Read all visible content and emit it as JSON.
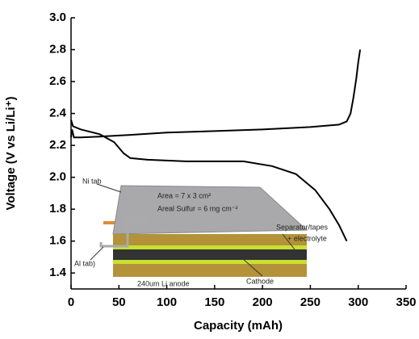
{
  "chart_data": {
    "type": "line",
    "x_label": "Capacity (mAh)",
    "y_label": "Voltage (V vs Li/Li⁺)",
    "xlim": [
      0,
      350
    ],
    "xticks": [
      0,
      50,
      100,
      150,
      200,
      250,
      300,
      350
    ],
    "ylim": [
      1.3,
      3.0
    ],
    "yticks": [
      1.4,
      1.6,
      1.8,
      {
        "value": 2.0,
        "label": "2.0"
      },
      2.2,
      2.4,
      2.6,
      2.8,
      {
        "value": 3.0,
        "label": "3.0"
      }
    ],
    "series": [
      {
        "color": "#000000",
        "x": [
          0,
          1,
          3,
          10,
          30,
          60,
          100,
          150,
          200,
          250,
          280,
          288,
          292,
          295,
          298,
          300,
          302
        ],
        "values": [
          2.25,
          2.3,
          2.25,
          2.25,
          2.255,
          2.265,
          2.28,
          2.29,
          2.3,
          2.315,
          2.33,
          2.35,
          2.4,
          2.5,
          2.62,
          2.72,
          2.8
        ]
      },
      {
        "color": "#000000",
        "x": [
          0,
          2,
          10,
          30,
          45,
          55,
          62,
          80,
          120,
          180,
          210,
          235,
          255,
          270,
          280,
          288
        ],
        "values": [
          2.36,
          2.32,
          2.3,
          2.27,
          2.22,
          2.15,
          2.12,
          2.11,
          2.1,
          2.1,
          2.07,
          2.02,
          1.92,
          1.8,
          1.7,
          1.6
        ]
      }
    ],
    "annotations": [
      "Ni tab",
      "Area = 7 x 3 cm²",
      "Areal Sulfur = 6 mg cm⁻²",
      "Separator/tapes",
      "+ electrolyte",
      "Al tab)",
      "240um Li anode",
      "Cathode"
    ]
  }
}
